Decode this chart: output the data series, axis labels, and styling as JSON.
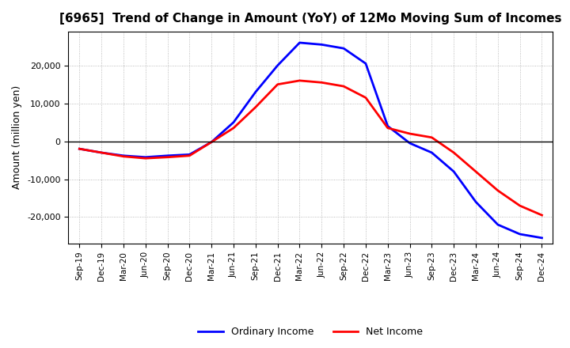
{
  "title": "[6965]  Trend of Change in Amount (YoY) of 12Mo Moving Sum of Incomes",
  "ylabel": "Amount (million yen)",
  "x_labels": [
    "Sep-19",
    "Dec-19",
    "Mar-20",
    "Jun-20",
    "Sep-20",
    "Dec-20",
    "Mar-21",
    "Jun-21",
    "Sep-21",
    "Dec-21",
    "Mar-22",
    "Jun-22",
    "Sep-22",
    "Dec-22",
    "Mar-23",
    "Jun-23",
    "Sep-23",
    "Dec-23",
    "Mar-24",
    "Jun-24",
    "Sep-24",
    "Dec-24"
  ],
  "ordinary_income": [
    -2000,
    -3000,
    -3800,
    -4200,
    -3800,
    -3500,
    -200,
    5000,
    13000,
    20000,
    26000,
    25500,
    24500,
    20500,
    4000,
    -500,
    -3000,
    -8000,
    -16000,
    -22000,
    -24500,
    -25500
  ],
  "net_income": [
    -2000,
    -3000,
    -4000,
    -4500,
    -4200,
    -3800,
    -200,
    3500,
    9000,
    15000,
    16000,
    15500,
    14500,
    11500,
    3500,
    2000,
    1000,
    -3000,
    -8000,
    -13000,
    -17000,
    -19500
  ],
  "ordinary_color": "#0000FF",
  "net_color": "#FF0000",
  "line_width": 2.0,
  "ylim": [
    -27000,
    29000
  ],
  "yticks": [
    -20000,
    -10000,
    0,
    10000,
    20000
  ],
  "background_color": "#FFFFFF",
  "grid_color": "#AAAAAA",
  "legend_labels": [
    "Ordinary Income",
    "Net Income"
  ]
}
